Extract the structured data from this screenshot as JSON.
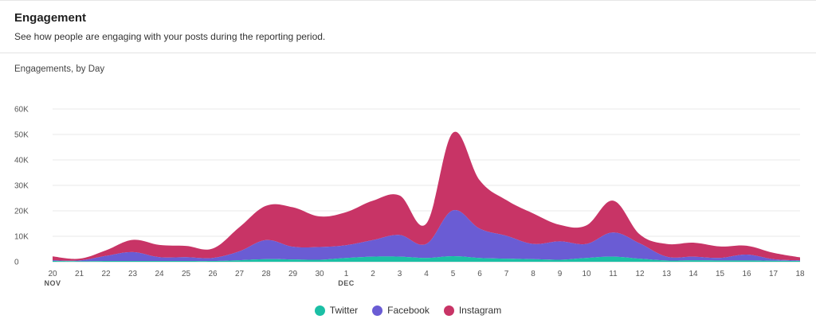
{
  "header": {
    "title": "Engagement",
    "subtitle": "See how people are engaging with your posts during the reporting period."
  },
  "chart_heading": "Engagements, by Day",
  "chart_data": {
    "type": "area",
    "stacked": true,
    "x": [
      "20",
      "21",
      "22",
      "23",
      "24",
      "25",
      "26",
      "27",
      "28",
      "29",
      "30",
      "1",
      "2",
      "3",
      "4",
      "5",
      "6",
      "7",
      "8",
      "9",
      "10",
      "11",
      "12",
      "13",
      "14",
      "15",
      "16",
      "17",
      "18"
    ],
    "month_labels": [
      {
        "index": 0,
        "label": "NOV"
      },
      {
        "index": 11,
        "label": "DEC"
      }
    ],
    "y_ticks": [
      "0",
      "10K",
      "20K",
      "30K",
      "40K",
      "50K",
      "60K"
    ],
    "ylim": [
      0,
      60000
    ],
    "grid": true,
    "legend_position": "bottom",
    "series": [
      {
        "name": "Twitter",
        "color": "#1bbfa5",
        "values": [
          300,
          200,
          300,
          300,
          300,
          300,
          300,
          600,
          1000,
          900,
          800,
          1500,
          2000,
          2000,
          1500,
          2200,
          1500,
          1200,
          1000,
          800,
          1500,
          2000,
          1200,
          500,
          600,
          500,
          500,
          400,
          300
        ]
      },
      {
        "name": "Facebook",
        "color": "#6a5cd4",
        "values": [
          300,
          300,
          2000,
          3500,
          1500,
          1500,
          1200,
          3500,
          7500,
          5000,
          5000,
          5000,
          6500,
          8500,
          5500,
          18000,
          11500,
          9000,
          6000,
          7200,
          5500,
          9500,
          6000,
          1500,
          1400,
          1000,
          2300,
          600,
          200
        ]
      },
      {
        "name": "Instagram",
        "color": "#c83466",
        "values": [
          1500,
          700,
          2200,
          4800,
          4800,
          4400,
          3700,
          9500,
          13500,
          15500,
          12000,
          13000,
          15500,
          15500,
          8000,
          30500,
          19000,
          14000,
          12000,
          6500,
          7300,
          12500,
          3500,
          5000,
          5500,
          4500,
          3500,
          2500,
          1200
        ]
      }
    ]
  }
}
